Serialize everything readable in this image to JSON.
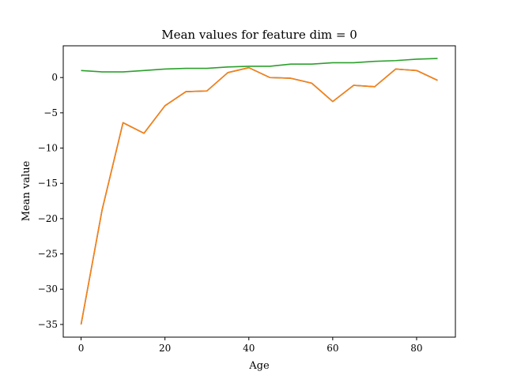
{
  "chart_data": {
    "type": "line",
    "title": "Mean values for feature dim = 0",
    "xlabel": "Age",
    "ylabel": "Mean value",
    "xlim": [
      -4.25,
      89.25
    ],
    "ylim": [
      -36.8,
      4.5
    ],
    "x_ticks": [
      0,
      20,
      40,
      60,
      80
    ],
    "x_tick_labels": [
      "0",
      "20",
      "40",
      "60",
      "80"
    ],
    "y_ticks": [
      0,
      -5,
      -10,
      -15,
      -20,
      -25,
      -30,
      -35
    ],
    "y_tick_labels": [
      "0",
      "−5",
      "−10",
      "−15",
      "−20",
      "−25",
      "−30",
      "−35"
    ],
    "grid": false,
    "legend": "none",
    "x": [
      0,
      5,
      10,
      15,
      20,
      25,
      30,
      35,
      40,
      45,
      50,
      55,
      60,
      65,
      70,
      75,
      80,
      85
    ],
    "series": [
      {
        "color": "#1f77b4",
        "values": [
          -35.0,
          -18.8,
          -6.4,
          -7.9,
          -4.0,
          -2.0,
          -1.9,
          0.7,
          1.4,
          0.0,
          -0.1,
          -0.8,
          -3.4,
          -1.1,
          -1.3,
          1.2,
          1.0,
          -0.4
        ]
      },
      {
        "color": "#ff7f0e",
        "values": [
          -35.0,
          -18.8,
          -6.4,
          -7.9,
          -4.0,
          -2.0,
          -1.9,
          0.7,
          1.4,
          0.0,
          -0.1,
          -0.8,
          -3.4,
          -1.1,
          -1.3,
          1.2,
          1.0,
          -0.4
        ]
      },
      {
        "color": "#2ca02c",
        "values": [
          1.0,
          0.8,
          0.8,
          1.0,
          1.2,
          1.3,
          1.3,
          1.5,
          1.6,
          1.6,
          1.9,
          1.9,
          2.1,
          2.1,
          2.3,
          2.4,
          2.6,
          2.7
        ]
      }
    ]
  }
}
